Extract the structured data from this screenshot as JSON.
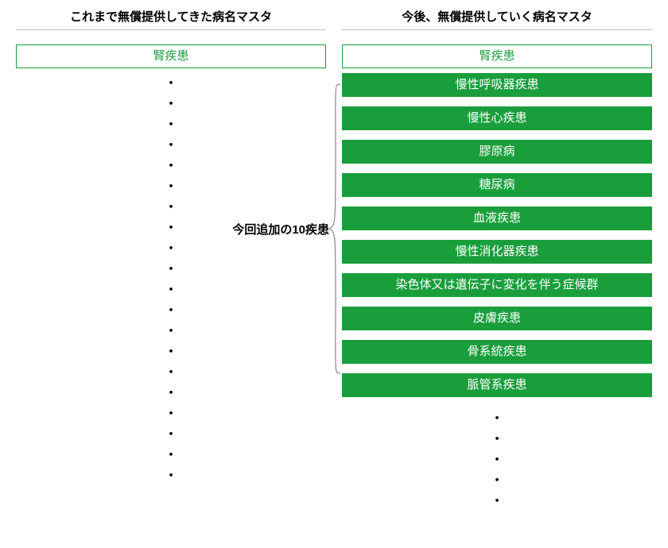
{
  "left": {
    "header": "これまで無償提供してきた病名マスタ",
    "top_pill": "腎疾患",
    "dot_count": 20
  },
  "right": {
    "header": "今後、無償提供していく病名マスタ",
    "top_pill": "腎疾患",
    "added_items": [
      "慢性呼吸器疾患",
      "慢性心疾患",
      "膠原病",
      "糖尿病",
      "血液疾患",
      "慢性消化器疾患",
      "染色体又は遺伝子に変化を伴う症候群",
      "皮膚疾患",
      "骨系統疾患",
      "脈管系疾患"
    ],
    "bottom_dot_count": 5
  },
  "brace_label": "今回追加の10疾患",
  "colors": {
    "green": "#1a9e3c",
    "text": "#000000",
    "divider": "#bfbfbf",
    "white": "#ffffff"
  }
}
